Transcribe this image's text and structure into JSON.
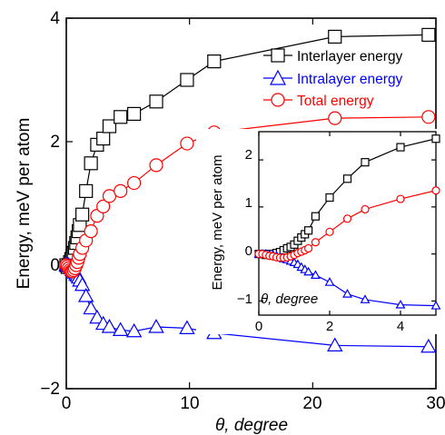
{
  "chart_data": [
    {
      "type": "line",
      "xlabel": "θ, degree",
      "ylabel": "Energy, meV per atom",
      "xlim": [
        0,
        30
      ],
      "ylim": [
        -2,
        4
      ],
      "xticks": [
        "0",
        "10",
        "20",
        "30"
      ],
      "yticks": [
        "−2",
        "0",
        "2",
        "4"
      ],
      "legend_position": "top-right",
      "series": [
        {
          "name": "Interlayer energy",
          "color": "#000000",
          "marker": "square",
          "x": [
            0.0,
            0.1,
            0.2,
            0.3,
            0.4,
            0.5,
            0.6,
            0.7,
            0.8,
            0.9,
            1.0,
            1.1,
            1.3,
            1.6,
            2.0,
            2.5,
            3.0,
            3.5,
            4.4,
            5.5,
            7.3,
            9.8,
            12.0,
            21.8,
            29.4
          ],
          "y": [
            0.0,
            -0.03,
            0.0,
            0.05,
            0.1,
            0.15,
            0.2,
            0.28,
            0.36,
            0.45,
            0.55,
            0.65,
            0.82,
            1.2,
            1.65,
            1.95,
            2.05,
            2.25,
            2.4,
            2.45,
            2.65,
            3.0,
            3.3,
            3.7,
            3.73
          ]
        },
        {
          "name": "Intralayer energy",
          "color": "#0000ff",
          "marker": "triangle",
          "x": [
            0.0,
            0.1,
            0.2,
            0.3,
            0.4,
            0.5,
            0.6,
            0.7,
            0.8,
            0.9,
            1.0,
            1.1,
            1.3,
            1.6,
            2.0,
            2.5,
            3.0,
            3.5,
            4.4,
            5.5,
            7.3,
            9.8,
            12.0,
            21.8,
            29.4
          ],
          "y": [
            0.0,
            0.01,
            0.0,
            -0.02,
            -0.05,
            -0.08,
            -0.1,
            -0.12,
            -0.15,
            -0.17,
            -0.2,
            -0.25,
            -0.32,
            -0.5,
            -0.7,
            -0.85,
            -0.95,
            -1.0,
            -1.05,
            -1.07,
            -1.0,
            -1.02,
            -1.1,
            -1.3,
            -1.32
          ]
        },
        {
          "name": "Total energy",
          "color": "#ff0000",
          "marker": "circle",
          "x": [
            0.0,
            0.1,
            0.2,
            0.3,
            0.4,
            0.5,
            0.6,
            0.7,
            0.8,
            0.9,
            1.0,
            1.1,
            1.3,
            1.6,
            2.0,
            2.5,
            3.0,
            3.5,
            4.4,
            5.5,
            7.3,
            9.8,
            12.0,
            21.8,
            29.4
          ],
          "y": [
            0.0,
            -0.02,
            -0.05,
            -0.08,
            -0.1,
            -0.1,
            -0.08,
            -0.05,
            0.0,
            0.05,
            0.12,
            0.18,
            0.28,
            0.4,
            0.55,
            0.8,
            0.95,
            1.12,
            1.2,
            1.33,
            1.62,
            1.97,
            2.15,
            2.38,
            2.4
          ]
        }
      ]
    },
    {
      "type": "line",
      "xlabel": "θ, degree",
      "ylabel": "Energy, meV per atom",
      "xlim": [
        0,
        5
      ],
      "ylim": [
        -1.3,
        2.6
      ],
      "xticks": [
        "0",
        "2",
        "4"
      ],
      "yticks": [
        "−1",
        "0",
        "1",
        "2"
      ],
      "series": [
        {
          "name": "Interlayer energy",
          "color": "#000000",
          "marker": "square",
          "x": [
            0.0,
            0.1,
            0.2,
            0.3,
            0.4,
            0.5,
            0.6,
            0.7,
            0.8,
            0.9,
            1.0,
            1.1,
            1.2,
            1.3,
            1.4,
            1.6,
            2.0,
            2.5,
            3.0,
            4.0,
            5.0
          ],
          "y": [
            0.0,
            0.0,
            -0.02,
            0.0,
            0.0,
            0.02,
            0.04,
            0.08,
            0.12,
            0.15,
            0.2,
            0.28,
            0.35,
            0.42,
            0.5,
            0.8,
            1.2,
            1.6,
            1.95,
            2.27,
            2.45
          ]
        },
        {
          "name": "Intralayer energy",
          "color": "#0000ff",
          "marker": "triangle",
          "x": [
            0.0,
            0.1,
            0.2,
            0.3,
            0.4,
            0.5,
            0.6,
            0.7,
            0.8,
            0.9,
            1.0,
            1.1,
            1.2,
            1.3,
            1.4,
            1.6,
            2.0,
            2.5,
            3.0,
            4.0,
            5.0
          ],
          "y": [
            0.0,
            0.0,
            0.0,
            -0.02,
            -0.02,
            -0.04,
            -0.06,
            -0.1,
            -0.12,
            -0.15,
            -0.18,
            -0.22,
            -0.28,
            -0.33,
            -0.38,
            -0.45,
            -0.6,
            -0.85,
            -0.97,
            -1.08,
            -1.1
          ]
        },
        {
          "name": "Total energy",
          "color": "#ff0000",
          "marker": "circle",
          "x": [
            0.0,
            0.1,
            0.2,
            0.3,
            0.4,
            0.5,
            0.6,
            0.7,
            0.8,
            0.9,
            1.0,
            1.1,
            1.2,
            1.3,
            1.4,
            1.6,
            2.0,
            2.5,
            3.0,
            4.0,
            5.0
          ],
          "y": [
            0.0,
            0.0,
            -0.02,
            -0.04,
            -0.05,
            -0.07,
            -0.08,
            -0.08,
            -0.07,
            -0.05,
            -0.02,
            0.02,
            0.05,
            0.08,
            0.12,
            0.25,
            0.47,
            0.75,
            0.95,
            1.17,
            1.35
          ]
        }
      ]
    }
  ]
}
